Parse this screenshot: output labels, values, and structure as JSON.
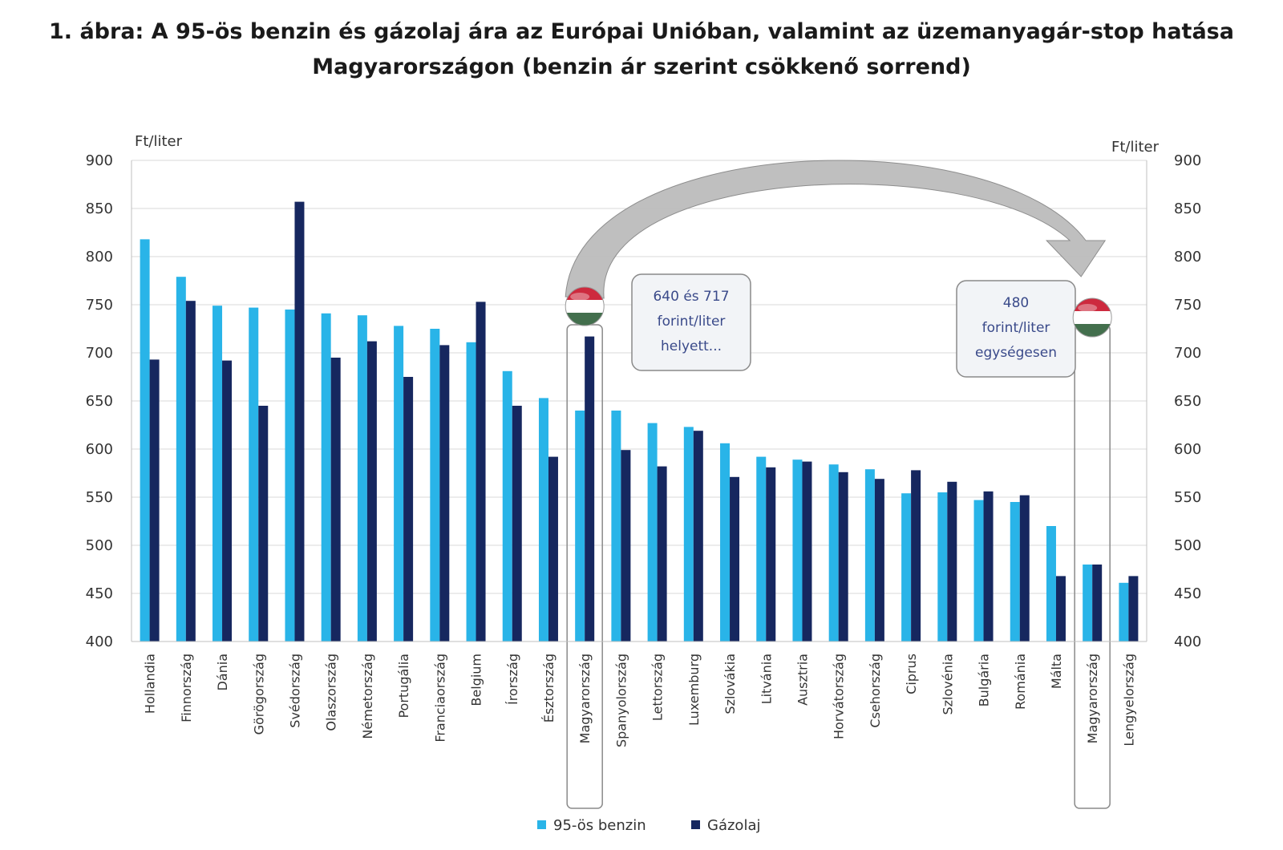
{
  "title": {
    "line1": "1. ábra: A 95-ös benzin és gázolaj ára az Európai Unióban, valamint az üzemanyagár-stop hatása",
    "line2": "Magyarországon (benzin ár szerint csökkenő sorrend)"
  },
  "colors": {
    "benzin": "#29b4e8",
    "gazolaj": "#16275f",
    "grid": "#d9d9d9",
    "arrow": "#b8b8b8",
    "box_border": "#8a8a8a",
    "flag_red": "#cd2a3e",
    "flag_white": "#ffffff",
    "flag_green": "#436f4d"
  },
  "chart_data": {
    "type": "bar",
    "title": "1. ábra: A 95-ös benzin és gázolaj ára az Európai Unióban, valamint az üzemanyagár-stop hatása Magyarországon (benzin ár szerint csökkenő sorrend)",
    "ylabel_left": "Ft/liter",
    "ylabel_right": "Ft/liter",
    "ylim": [
      400,
      900
    ],
    "yticks": [
      400,
      450,
      500,
      550,
      600,
      650,
      700,
      750,
      800,
      850,
      900
    ],
    "grid": true,
    "legend_position": "bottom",
    "categories": [
      "Hollandia",
      "Finnország",
      "Dánia",
      "Görögország",
      "Svédország",
      "Olaszország",
      "Németország",
      "Portugália",
      "Franciaország",
      "Belgium",
      "Írország",
      "Észtország",
      "Magyarország",
      "Spanyolország",
      "Lettország",
      "Luxemburg",
      "Szlovákia",
      "Litvánia",
      "Ausztria",
      "Horvátország",
      "Csehország",
      "Ciprus",
      "Szlovénia",
      "Bulgária",
      "Románia",
      "Málta",
      "Magyarország",
      "Lengyelország"
    ],
    "series": [
      {
        "name": "95-ös benzin",
        "values": [
          818,
          779,
          749,
          747,
          745,
          741,
          739,
          728,
          725,
          711,
          681,
          653,
          640,
          640,
          627,
          623,
          606,
          592,
          589,
          584,
          579,
          554,
          555,
          547,
          545,
          520,
          480,
          461
        ]
      },
      {
        "name": "Gázolaj",
        "values": [
          693,
          754,
          692,
          645,
          857,
          695,
          712,
          675,
          708,
          753,
          645,
          592,
          717,
          599,
          582,
          619,
          571,
          581,
          587,
          576,
          569,
          578,
          566,
          556,
          552,
          468,
          480,
          468
        ]
      }
    ],
    "annotations": [
      {
        "text_lines": [
          "640 és 717",
          "forint/liter",
          "helyett..."
        ],
        "category_index": 12
      },
      {
        "text_lines": [
          "480",
          "forint/liter",
          "egységesen"
        ],
        "category_index": 26
      }
    ],
    "highlighted_categories": [
      12,
      26
    ]
  }
}
